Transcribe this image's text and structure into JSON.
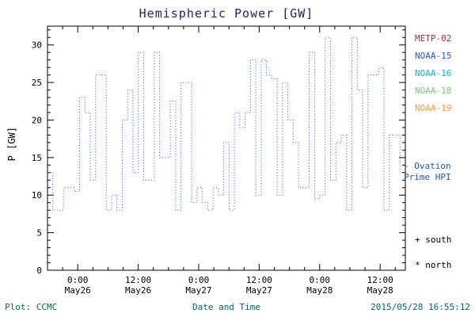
{
  "title": "Hemispheric Power [GW]",
  "legend": {
    "satellites": [
      {
        "label": "METP-02",
        "color": "#993333"
      },
      {
        "label": "NOAA-15",
        "color": "#2255cc"
      },
      {
        "label": "NOAA-16",
        "color": "#00b7c9"
      },
      {
        "label": "NOAA-18",
        "color": "#77cc77"
      },
      {
        "label": "NOAA-19",
        "color": "#ff9933"
      }
    ]
  },
  "annotations": {
    "ovation_line1": "- Ovation",
    "ovation_line2": "Prime HPI",
    "south": "+ south",
    "north": "* north"
  },
  "footer": {
    "plot_credit": "Plot: CCMC",
    "timestamp": "2015/05/28 16:55:12"
  },
  "colors": {
    "axis": "#000000",
    "line": "#2255cc",
    "title": "#202070",
    "footer_text": "#006666"
  },
  "chart_data": {
    "type": "line",
    "style": "stepped-dotted",
    "title": "Hemispheric Power [GW]",
    "xlabel": "Date and Time",
    "ylabel": "P [GW]",
    "ylim": [
      0,
      32.5
    ],
    "y_ticks": [
      0,
      5,
      10,
      15,
      20,
      25,
      30
    ],
    "x_hours_range": [
      0,
      71
    ],
    "x_start": "May25 18:00",
    "x_ticks": [
      {
        "hour": 6,
        "time": "0:00",
        "date": "May26"
      },
      {
        "hour": 18,
        "time": "12:00",
        "date": "May26"
      },
      {
        "hour": 30,
        "time": "0:00",
        "date": "May27"
      },
      {
        "hour": 42,
        "time": "12:00",
        "date": "May27"
      },
      {
        "hour": 54,
        "time": "0:00",
        "date": "May28"
      },
      {
        "hour": 66,
        "time": "12:00",
        "date": "May28"
      }
    ],
    "grid": false,
    "legend_position": "right",
    "series": [
      {
        "name": "Ovation Prime HPI (NOAA-15)",
        "color": "#2255cc",
        "units": "GW",
        "values": [
          13,
          8,
          8,
          11,
          11,
          10.5,
          23,
          21,
          12,
          26,
          26,
          8,
          10,
          8,
          20,
          24,
          13,
          29,
          12,
          12,
          29,
          15,
          15,
          22.5,
          8,
          25,
          25,
          9,
          11,
          9,
          8,
          11,
          10,
          17,
          8,
          21,
          19,
          21,
          28,
          10,
          28,
          26,
          25.5,
          10,
          25,
          20,
          17,
          11,
          11,
          29,
          9.5,
          10,
          31,
          12,
          17,
          18,
          8,
          31,
          24,
          11,
          26,
          26,
          27,
          8,
          18,
          18,
          13
        ]
      }
    ]
  }
}
